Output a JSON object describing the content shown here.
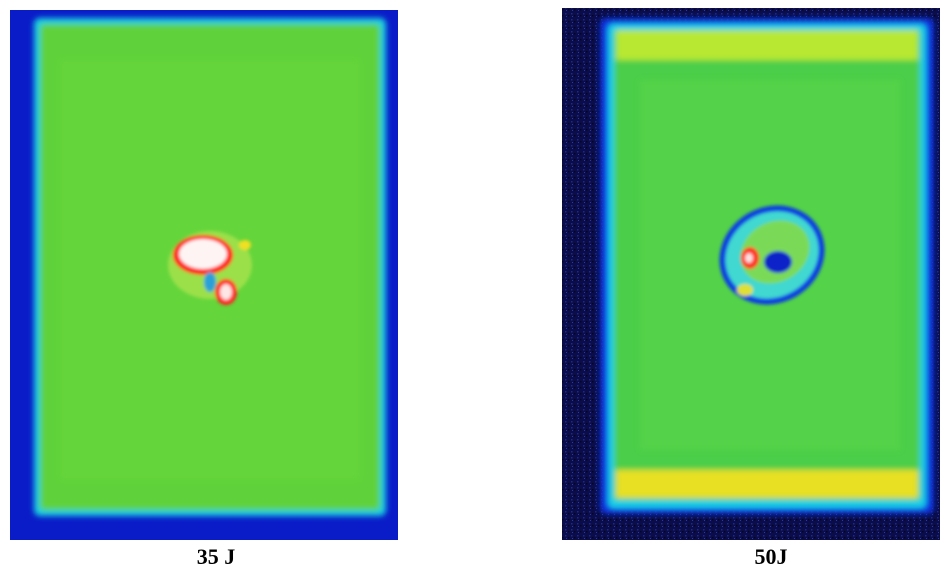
{
  "figure": {
    "panels": [
      {
        "caption": "35 J"
      },
      {
        "caption": "50J"
      }
    ]
  }
}
